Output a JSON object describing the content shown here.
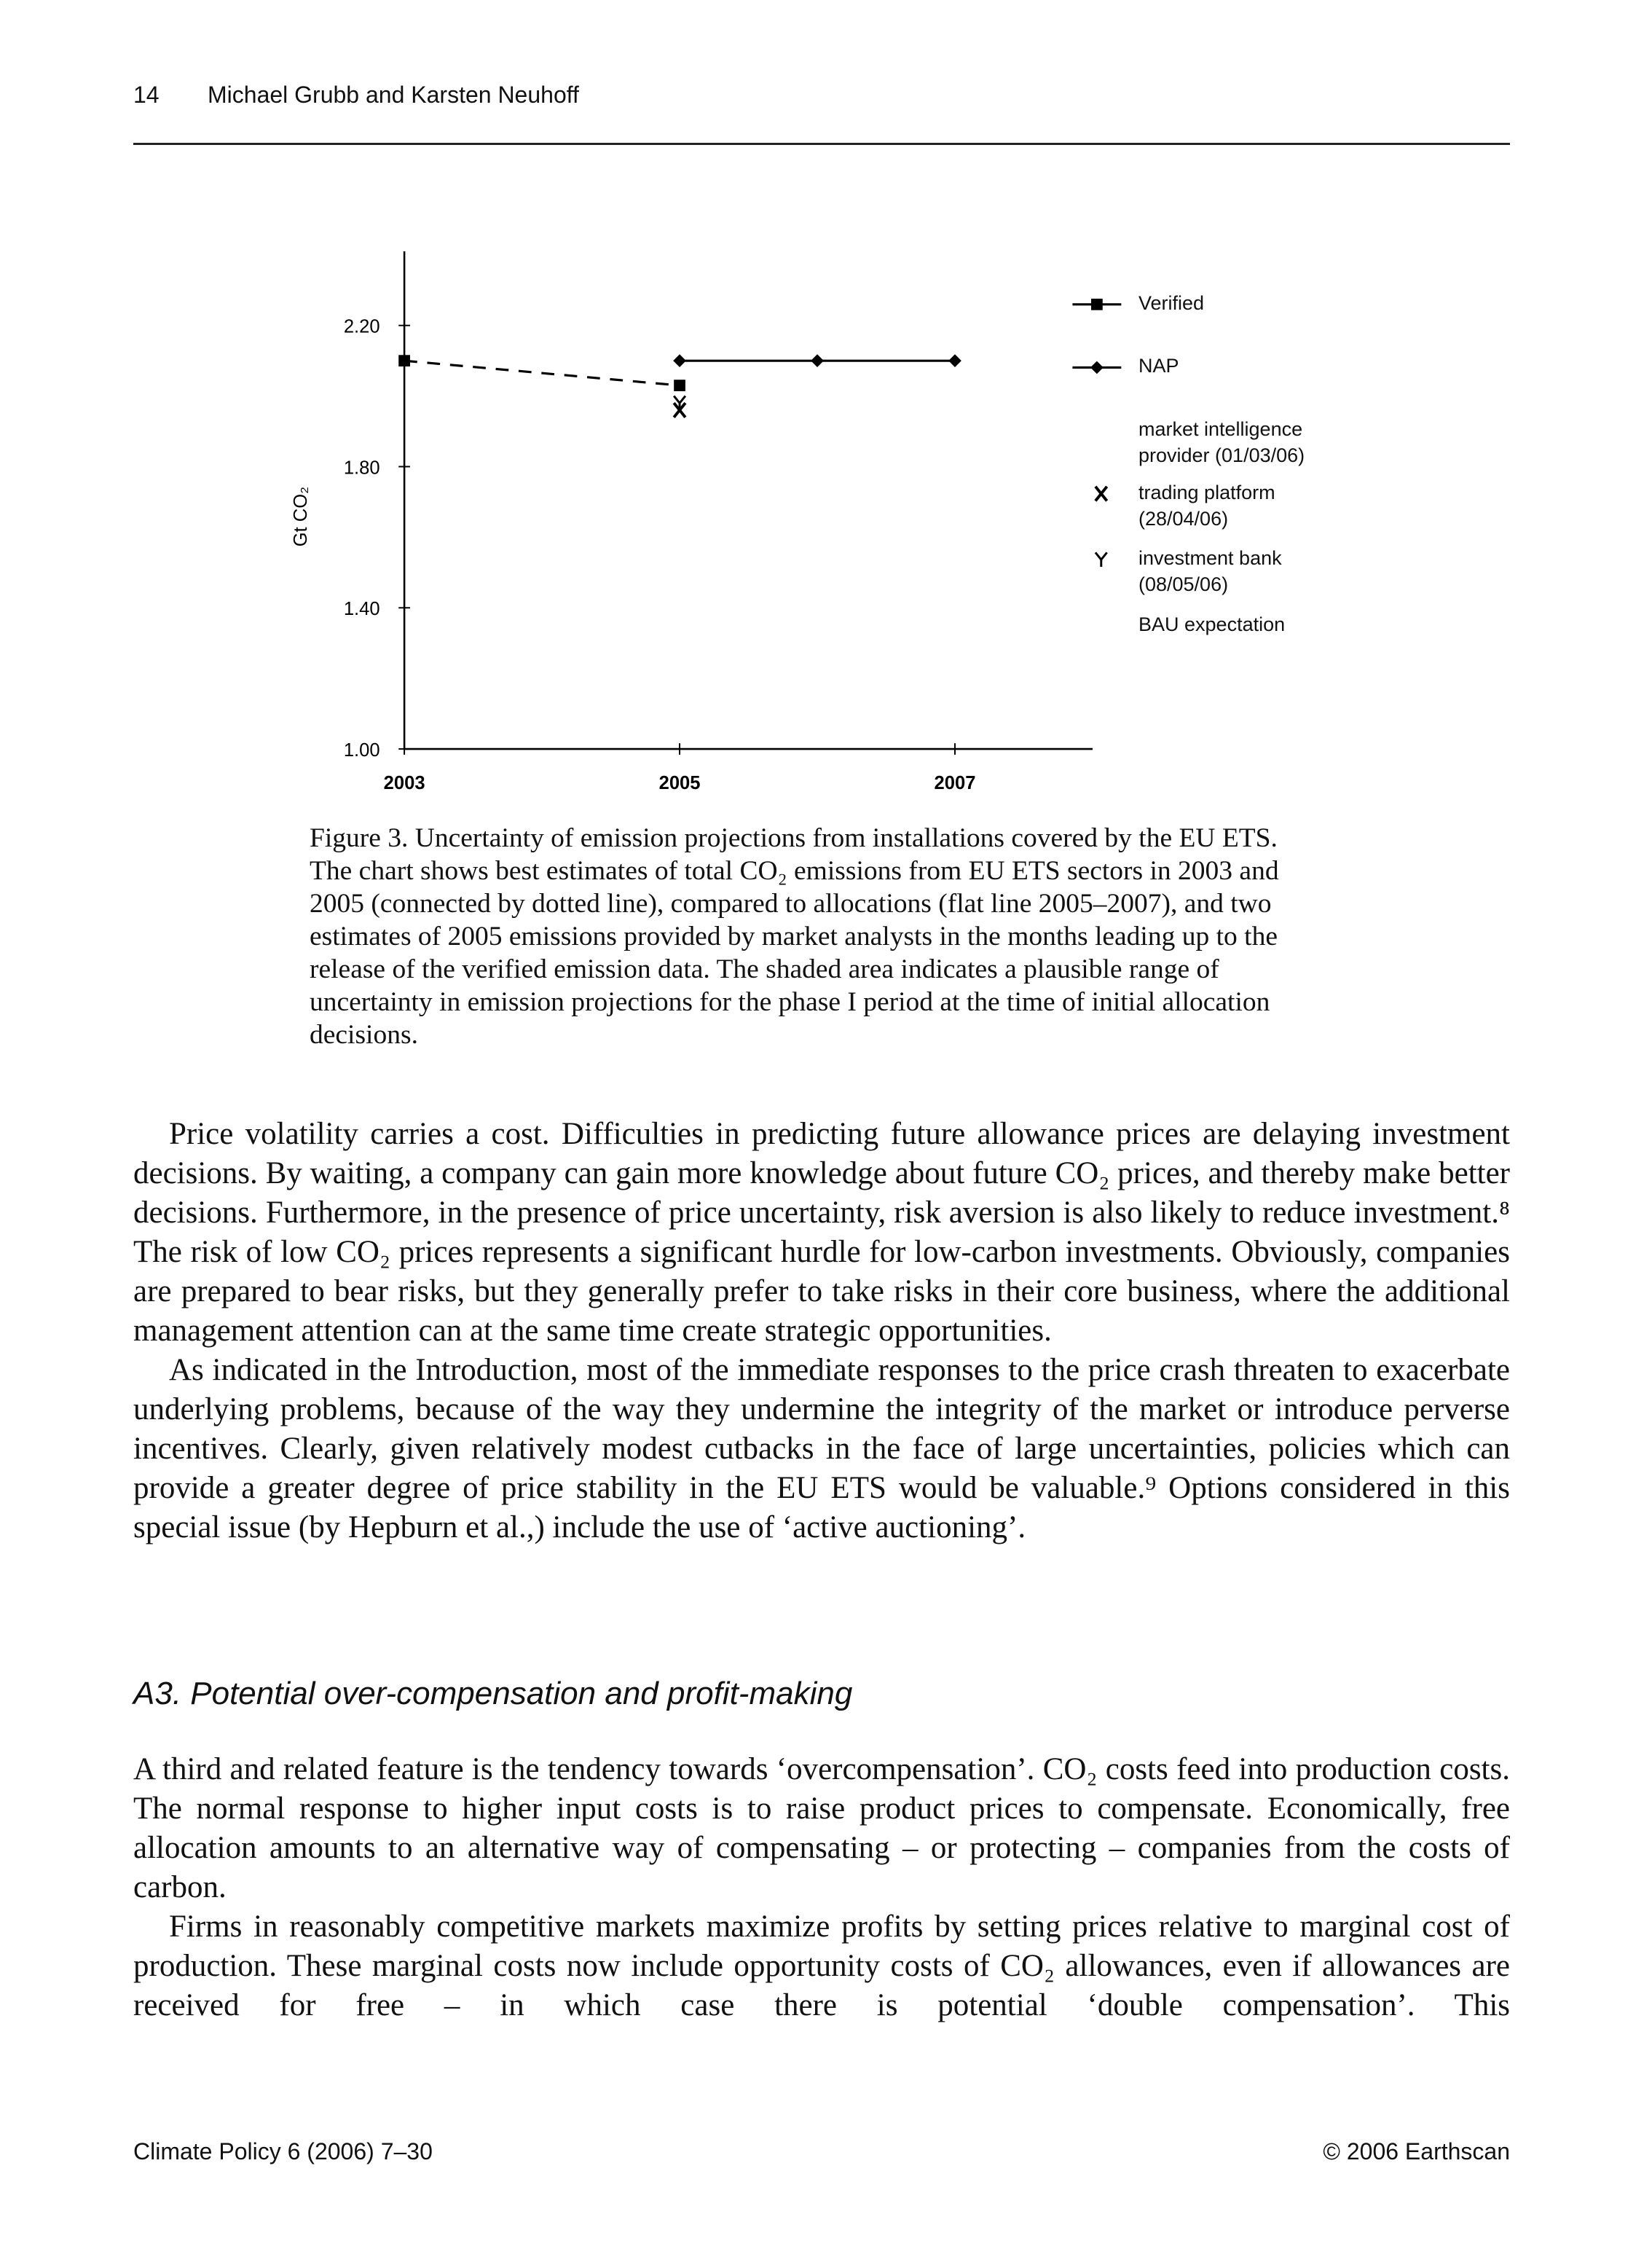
{
  "header": {
    "page_number": "14",
    "running_title": "Michael Grubb and Karsten Neuhoff"
  },
  "chart_data": {
    "type": "line",
    "ylabel": "Gt CO₂",
    "xlim": [
      2003,
      2008
    ],
    "xticks": [
      2003,
      2005,
      2007
    ],
    "ylim": [
      1.0,
      2.41
    ],
    "yticks": [
      {
        "value": 1.0,
        "label": "1.00"
      },
      {
        "value": 1.4,
        "label": "1.40"
      },
      {
        "value": 1.8,
        "label": "1.80"
      },
      {
        "value": 2.2,
        "label": "2.20"
      }
    ],
    "series": [
      {
        "name": "Verified",
        "color": "#000000",
        "marker": "square",
        "line": "dashed",
        "x": [
          2003,
          2005
        ],
        "values": [
          2.1,
          2.03
        ]
      },
      {
        "name": "NAP",
        "color": "#000000",
        "marker": "diamond",
        "line": "solid",
        "x": [
          2005,
          2006,
          2007
        ],
        "values": [
          2.1,
          2.1,
          2.1
        ]
      },
      {
        "name": "trading platform (28/04/06)",
        "color": "#000000",
        "marker": "x",
        "line": "none",
        "x": [
          2005
        ],
        "values": [
          1.96
        ]
      },
      {
        "name": "investment bank (08/05/06)",
        "color": "#000000",
        "marker": "y",
        "line": "none",
        "x": [
          2005
        ],
        "values": [
          1.98
        ]
      }
    ],
    "legend_heading": "market intelligence provider (01/03/06)",
    "legend_note": "BAU expectation"
  },
  "caption": "Figure 3. Uncertainty of emission projections from installations covered by the EU ETS. The chart shows best estimates of total CO₂ emissions from EU ETS sectors in 2003 and 2005 (connected by dotted line), compared to allocations (flat line 2005–2007), and two estimates of 2005 emissions provided by market analysts in the months leading up to the release of the verified emission data. The shaded area indicates a plausible range of uncertainty in emission projections for the phase I period at the time of initial allocation decisions.",
  "body": [
    "Price volatility carries a cost. Difficulties in predicting future allowance prices are delaying investment decisions. By waiting, a company can gain more knowledge about future CO₂ prices, and thereby make better decisions. Furthermore, in the presence of price uncertainty, risk aversion is also likely to reduce investment.⁸ The risk of low CO₂ prices represents a significant hurdle for low-carbon investments. Obviously, companies are prepared to bear risks, but they generally prefer to take risks in their core business, where the additional management attention can at the same time create strategic opportunities.",
    "As indicated in the Introduction, most of the immediate responses to the price crash threaten to exacerbate underlying problems, because of the way they undermine the integrity of the market or introduce perverse incentives. Clearly, given relatively modest cutbacks in the face of large uncertainties, policies which can provide a greater degree of price stability in the EU ETS would be valuable.⁹ Options considered in this special issue (by Hepburn et al.,) include the use of ‘active auctioning’."
  ],
  "section_heading": "A3. Potential over-compensation and profit-making",
  "section_body": [
    "A third and related feature is the tendency towards ‘overcompensation’. CO₂ costs feed into production costs. The normal response to higher input costs is to raise product prices to compensate. Economically, free allocation amounts to an alternative way of compensating – or protecting – companies from the costs of carbon.",
    "Firms in reasonably competitive markets maximize profits by setting prices relative to marginal cost of production. These marginal costs now include opportunity costs of CO₂ allowances, even if allowances are received for free – in which case there is potential ‘double compensation’. This"
  ],
  "footer": {
    "journal": "Climate Policy 6 (2006) 7–30",
    "copyright": "© 2006 Earthscan"
  }
}
